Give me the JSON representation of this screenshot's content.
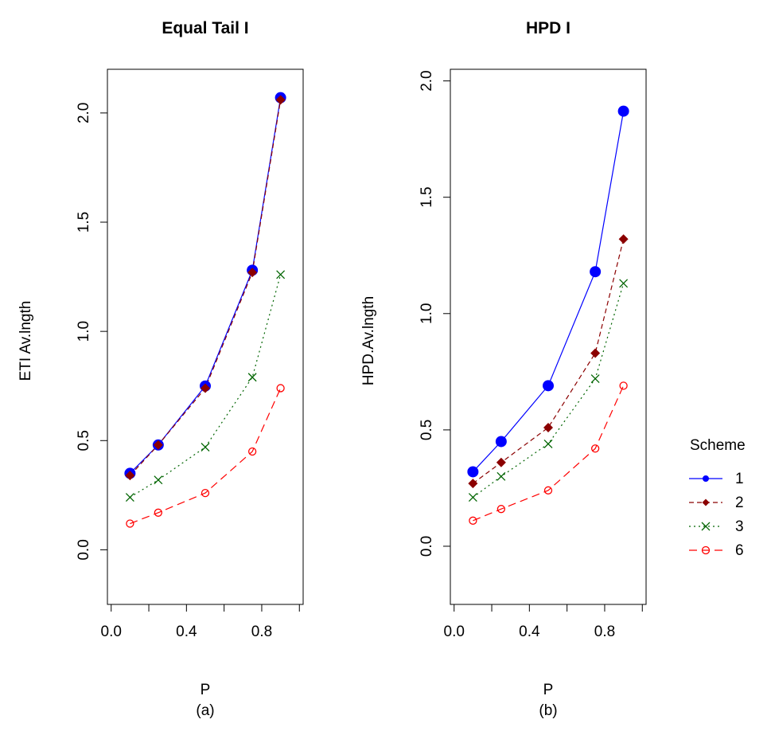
{
  "chart_data": [
    {
      "type": "line",
      "title": "Equal Tail I",
      "xlabel": "P",
      "sublabel": "(a)",
      "ylabel": "ETI Av.lngth",
      "xlim": [
        -0.02,
        1.02
      ],
      "ylim": [
        -0.25,
        2.2
      ],
      "xticks": [
        0.0,
        0.2,
        0.4,
        0.6,
        0.8,
        1.0
      ],
      "xtick_labels": [
        "0.0",
        "",
        "0.4",
        "",
        "0.8",
        ""
      ],
      "yticks": [
        0.0,
        0.5,
        1.0,
        1.5,
        2.0
      ],
      "ytick_labels": [
        "0.0",
        "0.5",
        "1.0",
        "1.5",
        "2.0"
      ],
      "x": [
        0.1,
        0.25,
        0.5,
        0.75,
        0.9
      ],
      "series": [
        {
          "name": "1",
          "values": [
            0.35,
            0.48,
            0.75,
            1.28,
            2.07
          ]
        },
        {
          "name": "2",
          "values": [
            0.34,
            0.48,
            0.74,
            1.27,
            2.06
          ]
        },
        {
          "name": "3",
          "values": [
            0.24,
            0.32,
            0.47,
            0.79,
            1.26
          ]
        },
        {
          "name": "6",
          "values": [
            0.12,
            0.17,
            0.26,
            0.45,
            0.74
          ]
        }
      ]
    },
    {
      "type": "line",
      "title": "HPD I",
      "xlabel": "P",
      "sublabel": "(b)",
      "ylabel": "HPD.Av.lngth",
      "xlim": [
        -0.02,
        1.02
      ],
      "ylim": [
        -0.25,
        2.05
      ],
      "xticks": [
        0.0,
        0.2,
        0.4,
        0.6,
        0.8,
        1.0
      ],
      "xtick_labels": [
        "0.0",
        "",
        "0.4",
        "",
        "0.8",
        ""
      ],
      "yticks": [
        0.0,
        0.5,
        1.0,
        1.5,
        2.0
      ],
      "ytick_labels": [
        "0.0",
        "0.5",
        "1.0",
        "1.5",
        "2.0"
      ],
      "x": [
        0.1,
        0.25,
        0.5,
        0.75,
        0.9
      ],
      "series": [
        {
          "name": "1",
          "values": [
            0.32,
            0.45,
            0.69,
            1.18,
            1.87
          ]
        },
        {
          "name": "2",
          "values": [
            0.27,
            0.36,
            0.51,
            0.83,
            1.32
          ]
        },
        {
          "name": "3",
          "values": [
            0.21,
            0.3,
            0.44,
            0.72,
            1.13
          ]
        },
        {
          "name": "6",
          "values": [
            0.11,
            0.16,
            0.24,
            0.42,
            0.69
          ]
        }
      ]
    }
  ],
  "legend": {
    "title": "Scheme",
    "placement": "right",
    "entries": [
      {
        "label": "1",
        "color": "#0000ff",
        "marker": "filled-circle",
        "line": "solid"
      },
      {
        "label": "2",
        "color": "#8b0000",
        "marker": "filled-diamond",
        "line": "dashed"
      },
      {
        "label": "3",
        "color": "#006400",
        "marker": "cross",
        "line": "dotted"
      },
      {
        "label": "6",
        "color": "#ff0000",
        "marker": "open-circle",
        "line": "long-dash"
      }
    ]
  }
}
